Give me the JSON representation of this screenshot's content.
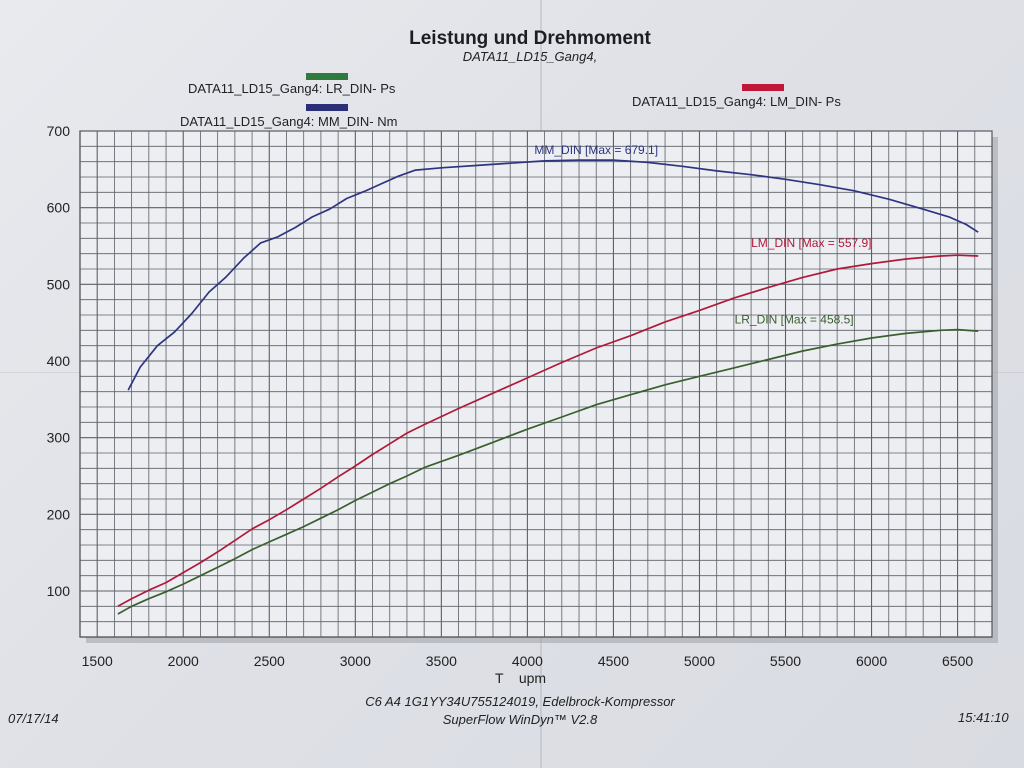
{
  "colors": {
    "lr": "#3a5f2e",
    "lm": "#b01a3a",
    "mm": "#2e3580",
    "grid": "#5c6068",
    "legend_lr": "#2f7a3c",
    "legend_mm": "#2a2f78",
    "legend_lm": "#c0163a"
  },
  "header": {
    "title": "Leistung und Drehmoment",
    "subtitle": "DATA11_LD15_Gang4,"
  },
  "legend": {
    "lr": "DATA11_LD15_Gang4: LR_DIN-  Ps",
    "mm": "DATA11_LD15_Gang4: MM_DIN-  Nm",
    "lm": "DATA11_LD15_Gang4: LM_DIN-  Ps"
  },
  "footer": {
    "line1": "C6 A4 1G1YY34U755124019, Edelbrock-Kompressor",
    "line2": "SuperFlow WinDyn™ V2.8",
    "date": "07/17/14",
    "time": "15:41:10"
  },
  "chart_data": {
    "type": "line",
    "title": "Leistung und Drehmoment",
    "subtitle": "DATA11_LD15_Gang4,",
    "xlabel": "T    upm",
    "ylabel": "",
    "xlim": [
      1400,
      6700
    ],
    "ylim": [
      40,
      700
    ],
    "x_ticks": [
      1500,
      2000,
      2500,
      3000,
      3500,
      4000,
      4500,
      5000,
      5500,
      6000,
      6500
    ],
    "y_ticks": [
      100,
      200,
      300,
      400,
      500,
      600,
      700
    ],
    "grid": true,
    "series": [
      {
        "name": "MM_DIN",
        "annotation": "MM_DIN [Max = 679.1]",
        "color_key": "mm",
        "x": [
          1680,
          1750,
          1850,
          1950,
          2050,
          2150,
          2250,
          2350,
          2450,
          2550,
          2650,
          2750,
          2850,
          2950,
          3050,
          3150,
          3250,
          3350,
          3500,
          3700,
          3900,
          4100,
          4300,
          4500,
          4700,
          4900,
          5100,
          5300,
          5500,
          5700,
          5900,
          6100,
          6300,
          6450,
          6550,
          6620
        ],
        "y": [
          362,
          392,
          420,
          438,
          462,
          490,
          510,
          534,
          554,
          562,
          574,
          588,
          598,
          612,
          621,
          631,
          641,
          649,
          652,
          655,
          658,
          661,
          662,
          662,
          659,
          654,
          648,
          643,
          637,
          630,
          622,
          611,
          598,
          588,
          578,
          568
        ]
      },
      {
        "name": "LM_DIN",
        "annotation": "LM_DIN [Max = 557.9]",
        "color_key": "lm",
        "x": [
          1620,
          1700,
          1800,
          1900,
          2000,
          2100,
          2200,
          2300,
          2400,
          2500,
          2600,
          2700,
          2800,
          2900,
          3000,
          3100,
          3200,
          3300,
          3400,
          3600,
          3800,
          4000,
          4200,
          4400,
          4600,
          4800,
          5000,
          5200,
          5400,
          5600,
          5800,
          6000,
          6200,
          6400,
          6500,
          6620
        ],
        "y": [
          80,
          90,
          101,
          111,
          124,
          137,
          151,
          166,
          181,
          193,
          206,
          220,
          234,
          249,
          263,
          278,
          292,
          306,
          317,
          338,
          358,
          378,
          398,
          417,
          433,
          451,
          466,
          482,
          496,
          509,
          520,
          527,
          533,
          537,
          538,
          537
        ]
      },
      {
        "name": "LR_DIN",
        "annotation": "LR_DIN [Max = 458.5]",
        "color_key": "lr",
        "x": [
          1620,
          1700,
          1800,
          1900,
          2000,
          2100,
          2200,
          2300,
          2400,
          2500,
          2600,
          2700,
          2800,
          2900,
          3000,
          3100,
          3200,
          3300,
          3400,
          3600,
          3800,
          4000,
          4200,
          4400,
          4600,
          4800,
          5000,
          5200,
          5400,
          5600,
          5800,
          6000,
          6200,
          6400,
          6500,
          6620
        ],
        "y": [
          70,
          80,
          90,
          99,
          109,
          120,
          131,
          142,
          154,
          164,
          174,
          184,
          195,
          206,
          218,
          229,
          240,
          250,
          261,
          277,
          294,
          311,
          327,
          343,
          356,
          369,
          380,
          391,
          402,
          413,
          422,
          430,
          436,
          440,
          441,
          439
        ]
      }
    ]
  }
}
